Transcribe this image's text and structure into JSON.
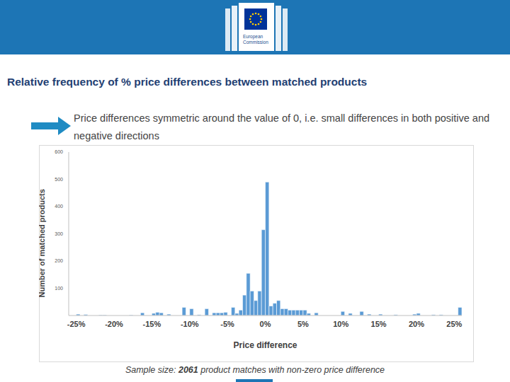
{
  "logo_text": [
    "European",
    "Commission"
  ],
  "chart_data": {
    "type": "histogram",
    "title": "Relative frequency of % price differences between matched products",
    "subtitle": "Price differences symmetric around the value of 0, i.e. small differences in both positive and negative directions",
    "x_label": "Price difference",
    "y_label": "Number of matched products",
    "footnote": [
      "Sample size: ",
      "2061",
      " product matches with non-zero price difference"
    ],
    "color": "#5b9bd5",
    "grid": false,
    "bins": [
      -25.5,
      -25,
      -24.5,
      -24,
      -23.5,
      -23,
      -22.5,
      -22,
      -21.5,
      -21,
      -20.5,
      -20,
      -19.5,
      -19,
      -18.5,
      -18,
      -17.5,
      -17,
      -16.5,
      -16,
      -15.5,
      -15,
      -14.5,
      -14,
      -13.5,
      -13,
      -12.5,
      -12,
      -11.5,
      -11,
      -10.5,
      -10,
      -9.5,
      -9,
      -8.5,
      -8,
      -7.5,
      -7,
      -6.5,
      -6,
      -5.5,
      -5,
      -4.5,
      -4,
      -3.5,
      -3,
      -2.5,
      -2,
      -1.5,
      -1,
      -0.5,
      0,
      0.5,
      1,
      1.5,
      2,
      2.5,
      3,
      3.5,
      4,
      4.5,
      5,
      5.5,
      6,
      6.5,
      7,
      7.5,
      8,
      8.5,
      9,
      9.5,
      10,
      10.5,
      11,
      11.5,
      12,
      12.5,
      13,
      13.5,
      14,
      14.5,
      15,
      15.5,
      16,
      16.5,
      17,
      17.5,
      18,
      18.5,
      19,
      19.5,
      20,
      20.5,
      21,
      21.5,
      22,
      22.5,
      23,
      23.5,
      24,
      24.5,
      25,
      25.5,
      26
    ],
    "values": [
      0,
      5,
      0,
      4,
      0,
      0,
      0,
      2,
      2,
      0,
      0,
      0,
      0,
      0,
      0,
      2,
      0,
      0,
      10,
      0,
      0,
      8,
      12,
      10,
      0,
      5,
      0,
      0,
      0,
      30,
      0,
      25,
      0,
      3,
      0,
      25,
      0,
      10,
      10,
      10,
      12,
      0,
      30,
      8,
      20,
      75,
      155,
      90,
      55,
      90,
      315,
      490,
      35,
      45,
      55,
      25,
      25,
      20,
      20,
      20,
      20,
      20,
      8,
      0,
      10,
      0,
      0,
      0,
      0,
      0,
      0,
      15,
      0,
      8,
      0,
      0,
      15,
      0,
      5,
      0,
      0,
      5,
      0,
      0,
      0,
      3,
      0,
      0,
      0,
      0,
      5,
      8,
      0,
      0,
      0,
      3,
      0,
      3,
      0,
      0,
      0,
      0,
      30
    ],
    "xlim": [
      -26,
      26
    ],
    "xticks": [
      {
        "value": -25,
        "label": "-25%"
      },
      {
        "value": -20,
        "label": "-20%"
      },
      {
        "value": -15,
        "label": "-15%"
      },
      {
        "value": -10,
        "label": "-10%"
      },
      {
        "value": -5,
        "label": "-5%"
      },
      {
        "value": 0,
        "label": "0%"
      },
      {
        "value": 5,
        "label": "5%"
      },
      {
        "value": 10,
        "label": "10%"
      },
      {
        "value": 15,
        "label": "15%"
      },
      {
        "value": 20,
        "label": "20%"
      },
      {
        "value": 25,
        "label": "25%"
      }
    ],
    "ylim": [
      0,
      600
    ],
    "yticks": [
      0,
      100,
      200,
      300,
      400,
      500,
      600
    ]
  }
}
